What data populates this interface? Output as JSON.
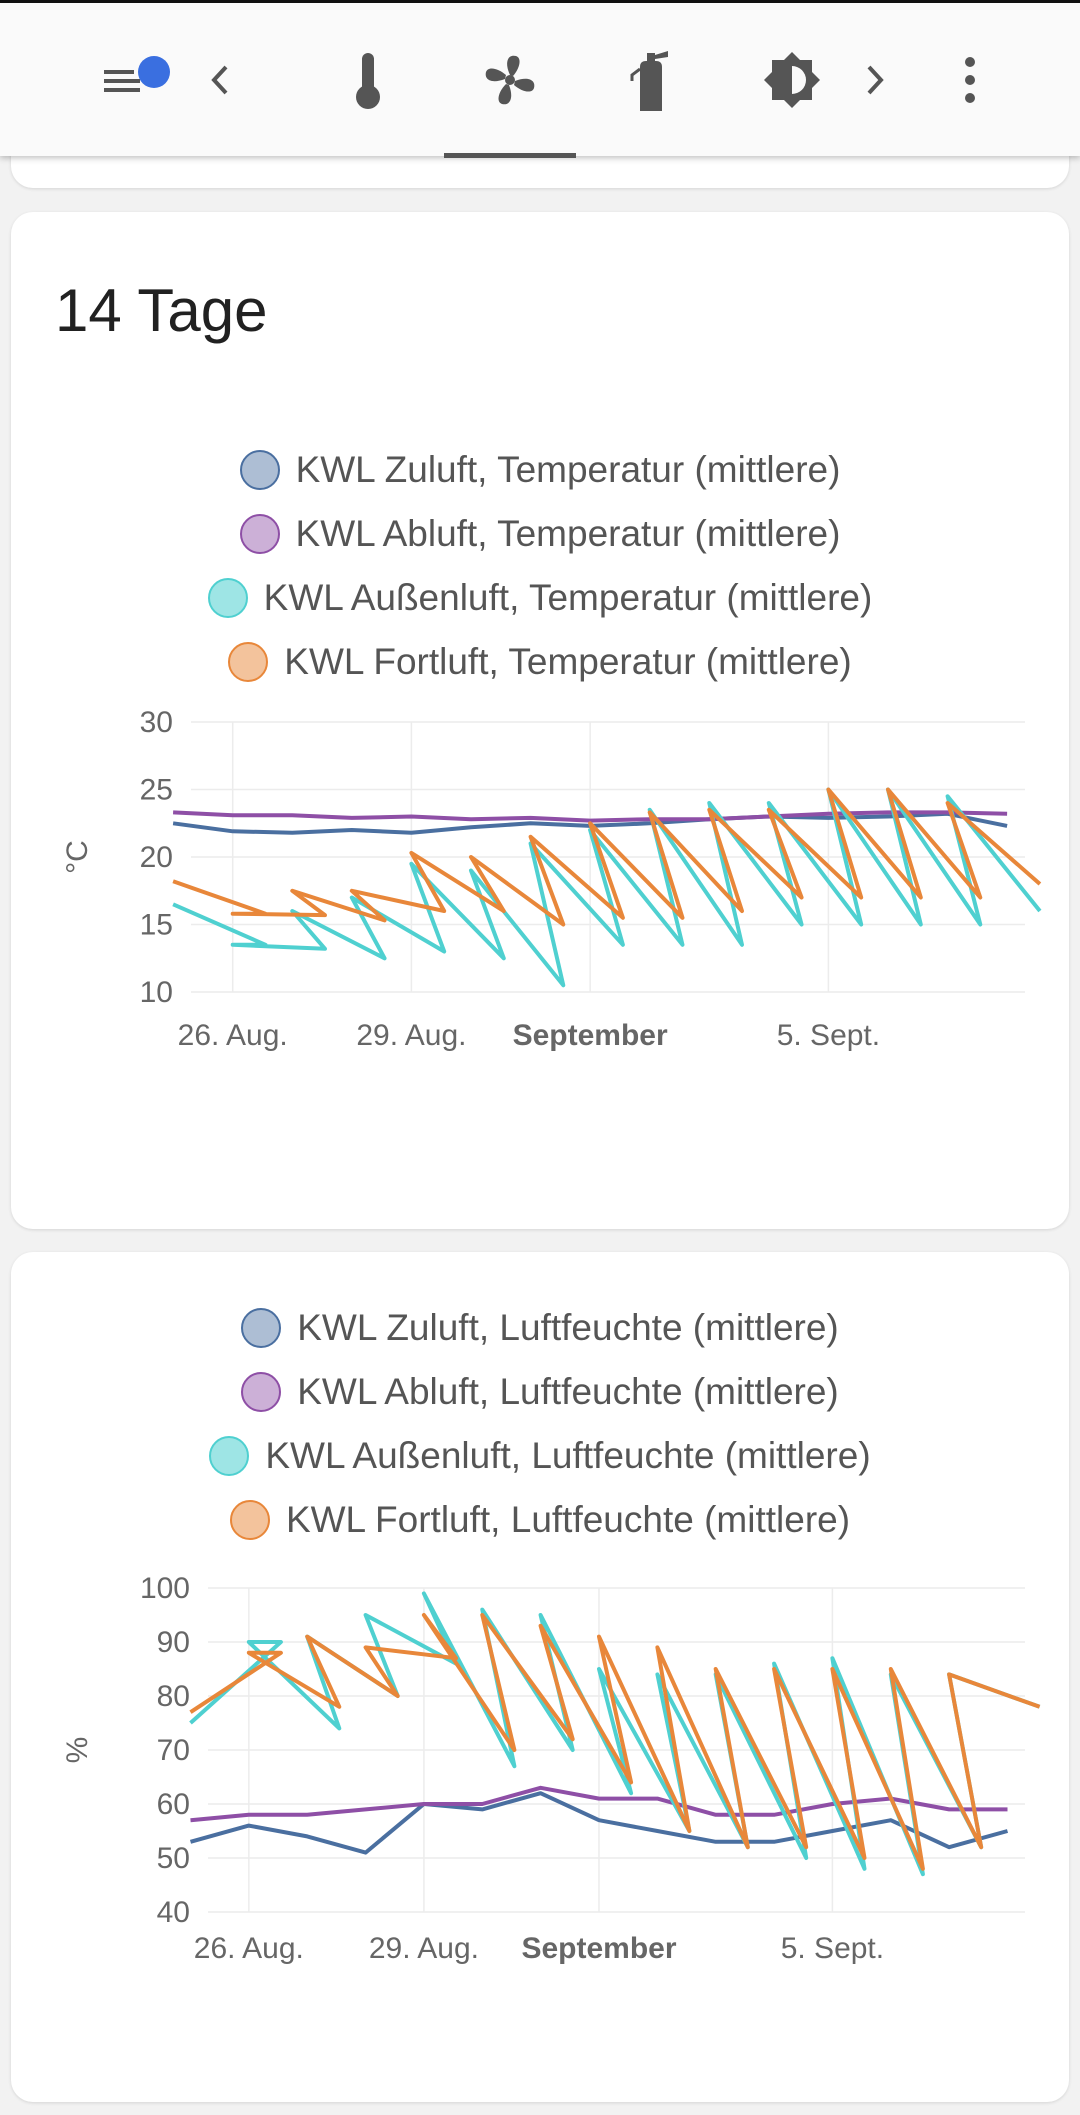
{
  "toolbar": {
    "icons": [
      "menu-icon",
      "chevron-left-icon",
      "thermometer-icon",
      "fan-icon",
      "fire-extinguisher-icon",
      "brightness-icon",
      "chevron-right-icon",
      "more-vertical-icon"
    ],
    "active_tab": "fan-icon",
    "badge_color": "#3a6fe0"
  },
  "colors": {
    "zuluft": "#4a6fa0",
    "abluft": "#8e4fa6",
    "aussenluft": "#4fd0d0",
    "fortluft": "#e8873a"
  },
  "card1": {
    "title": "14 Tage"
  },
  "chart_data": [
    {
      "type": "line",
      "title": "",
      "xlabel": "",
      "ylabel": "°C",
      "ylim": [
        10,
        30
      ],
      "yticks": [
        "10",
        "15",
        "20",
        "25",
        "30"
      ],
      "xticks": [
        "26. Aug.",
        "29. Aug.",
        "September",
        "5. Sept."
      ],
      "xlim_days": [
        25.3,
        39.3
      ],
      "legend": [
        "KWL Zuluft, Temperatur (mittlere)",
        "KWL Abluft, Temperatur (mittlere)",
        "KWL Außenluft, Temperatur (mittlere)",
        "KWL Fortluft, Temperatur (mittlere)"
      ],
      "series": [
        {
          "name": "KWL Zuluft, Temperatur (mittlere)",
          "color_key": "zuluft",
          "x": [
            "2024-08-25",
            "2024-08-26",
            "2024-08-27",
            "2024-08-28",
            "2024-08-29",
            "2024-08-30",
            "2024-08-31",
            "2024-09-01",
            "2024-09-02",
            "2024-09-03",
            "2024-09-04",
            "2024-09-05",
            "2024-09-06",
            "2024-09-07",
            "2024-09-08"
          ],
          "values": [
            22.5,
            21.9,
            21.8,
            22.0,
            21.8,
            22.2,
            22.5,
            22.3,
            22.5,
            22.8,
            23.0,
            22.9,
            23.0,
            23.2,
            22.3
          ]
        },
        {
          "name": "KWL Abluft, Temperatur (mittlere)",
          "color_key": "abluft",
          "x": [
            "2024-08-25",
            "2024-08-26",
            "2024-08-27",
            "2024-08-28",
            "2024-08-29",
            "2024-08-30",
            "2024-08-31",
            "2024-09-01",
            "2024-09-02",
            "2024-09-03",
            "2024-09-04",
            "2024-09-05",
            "2024-09-06",
            "2024-09-07",
            "2024-09-08"
          ],
          "values": [
            23.3,
            23.1,
            23.1,
            22.9,
            23.0,
            22.8,
            22.9,
            22.7,
            22.8,
            22.8,
            23.0,
            23.2,
            23.3,
            23.3,
            23.2
          ]
        },
        {
          "name": "KWL Außenluft, Temperatur (mittlere)",
          "color_key": "aussenluft",
          "x": [
            "2024-08-25",
            "2024-08-26",
            "2024-08-26",
            "2024-08-27",
            "2024-08-27",
            "2024-08-28",
            "2024-08-28",
            "2024-08-29",
            "2024-08-29",
            "2024-08-30",
            "2024-08-30",
            "2024-08-31",
            "2024-08-31",
            "2024-09-01",
            "2024-09-01",
            "2024-09-02",
            "2024-09-02",
            "2024-09-03",
            "2024-09-03",
            "2024-09-04",
            "2024-09-04",
            "2024-09-05",
            "2024-09-05",
            "2024-09-06",
            "2024-09-06",
            "2024-09-07",
            "2024-09-07",
            "2024-09-08"
          ],
          "values": [
            16.5,
            13.5,
            13.5,
            13.2,
            16.0,
            12.5,
            17.0,
            13.0,
            19.5,
            12.5,
            19.0,
            10.5,
            21.0,
            13.5,
            22.0,
            13.5,
            23.5,
            13.5,
            24.0,
            15.0,
            24.0,
            15.0,
            25.0,
            15.0,
            25.0,
            15.0,
            24.5,
            16.0
          ]
        },
        {
          "name": "KWL Fortluft, Temperatur (mittlere)",
          "color_key": "fortluft",
          "x": [
            "2024-08-25",
            "2024-08-26",
            "2024-08-26",
            "2024-08-27",
            "2024-08-27",
            "2024-08-28",
            "2024-08-28",
            "2024-08-29",
            "2024-08-29",
            "2024-08-30",
            "2024-08-30",
            "2024-08-31",
            "2024-08-31",
            "2024-09-01",
            "2024-09-01",
            "2024-09-02",
            "2024-09-02",
            "2024-09-03",
            "2024-09-03",
            "2024-09-04",
            "2024-09-04",
            "2024-09-05",
            "2024-09-05",
            "2024-09-06",
            "2024-09-06",
            "2024-09-07",
            "2024-09-07",
            "2024-09-08"
          ],
          "values": [
            18.2,
            15.8,
            15.8,
            15.7,
            17.5,
            15.3,
            17.5,
            16.0,
            20.3,
            16.0,
            20.0,
            15.0,
            21.5,
            15.5,
            22.5,
            15.5,
            23.3,
            16.0,
            23.5,
            17.0,
            23.5,
            17.0,
            25.0,
            17.0,
            25.0,
            17.0,
            24.0,
            18.0
          ]
        }
      ]
    },
    {
      "type": "line",
      "title": "",
      "xlabel": "",
      "ylabel": "%",
      "ylim": [
        40,
        100
      ],
      "yticks": [
        "40",
        "50",
        "60",
        "70",
        "80",
        "90",
        "100"
      ],
      "xticks": [
        "26. Aug.",
        "29. Aug.",
        "September",
        "5. Sept."
      ],
      "xlim_days": [
        25.3,
        39.3
      ],
      "legend": [
        "KWL Zuluft, Luftfeuchte (mittlere)",
        "KWL Abluft, Luftfeuchte (mittlere)",
        "KWL Außenluft, Luftfeuchte (mittlere)",
        "KWL Fortluft, Luftfeuchte (mittlere)"
      ],
      "series": [
        {
          "name": "KWL Zuluft, Luftfeuchte (mittlere)",
          "color_key": "zuluft",
          "x": [
            "2024-08-25",
            "2024-08-26",
            "2024-08-27",
            "2024-08-28",
            "2024-08-29",
            "2024-08-30",
            "2024-08-31",
            "2024-09-01",
            "2024-09-02",
            "2024-09-03",
            "2024-09-04",
            "2024-09-05",
            "2024-09-06",
            "2024-09-07",
            "2024-09-08"
          ],
          "values": [
            53,
            56,
            54,
            51,
            60,
            59,
            62,
            57,
            55,
            53,
            53,
            55,
            57,
            52,
            55
          ]
        },
        {
          "name": "KWL Abluft, Luftfeuchte (mittlere)",
          "color_key": "abluft",
          "x": [
            "2024-08-25",
            "2024-08-26",
            "2024-08-27",
            "2024-08-28",
            "2024-08-29",
            "2024-08-30",
            "2024-08-31",
            "2024-09-01",
            "2024-09-02",
            "2024-09-03",
            "2024-09-04",
            "2024-09-05",
            "2024-09-06",
            "2024-09-07",
            "2024-09-08"
          ],
          "values": [
            57,
            58,
            58,
            59,
            60,
            60,
            63,
            61,
            61,
            58,
            58,
            60,
            61,
            59,
            59
          ]
        },
        {
          "name": "KWL Außenluft, Luftfeuchte (mittlere)",
          "color_key": "aussenluft",
          "x": [
            "2024-08-25",
            "2024-08-26",
            "2024-08-26",
            "2024-08-27",
            "2024-08-27",
            "2024-08-28",
            "2024-08-28",
            "2024-08-29",
            "2024-08-29",
            "2024-08-30",
            "2024-08-30",
            "2024-08-31",
            "2024-08-31",
            "2024-09-01",
            "2024-09-01",
            "2024-09-02",
            "2024-09-02",
            "2024-09-03",
            "2024-09-03",
            "2024-09-04",
            "2024-09-04",
            "2024-09-05",
            "2024-09-05",
            "2024-09-06",
            "2024-09-06",
            "2024-09-07",
            "2024-09-07",
            "2024-09-08"
          ],
          "values": [
            75,
            90,
            90,
            74,
            91,
            80,
            95,
            86,
            99,
            67,
            96,
            70,
            95,
            62,
            85,
            55,
            84,
            52,
            84,
            50,
            86,
            48,
            87,
            47,
            84,
            52,
            84,
            78
          ]
        },
        {
          "name": "KWL Fortluft, Luftfeuchte (mittlere)",
          "color_key": "fortluft",
          "x": [
            "2024-08-25",
            "2024-08-26",
            "2024-08-26",
            "2024-08-27",
            "2024-08-27",
            "2024-08-28",
            "2024-08-28",
            "2024-08-29",
            "2024-08-29",
            "2024-08-30",
            "2024-08-30",
            "2024-08-31",
            "2024-08-31",
            "2024-09-01",
            "2024-09-01",
            "2024-09-02",
            "2024-09-02",
            "2024-09-03",
            "2024-09-03",
            "2024-09-04",
            "2024-09-04",
            "2024-09-05",
            "2024-09-05",
            "2024-09-06",
            "2024-09-06",
            "2024-09-07",
            "2024-09-07",
            "2024-09-08"
          ],
          "values": [
            77,
            88,
            88,
            78,
            91,
            80,
            89,
            87,
            95,
            70,
            95,
            72,
            93,
            64,
            91,
            55,
            89,
            52,
            85,
            52,
            85,
            50,
            85,
            48,
            85,
            52,
            84,
            78
          ]
        }
      ]
    }
  ]
}
